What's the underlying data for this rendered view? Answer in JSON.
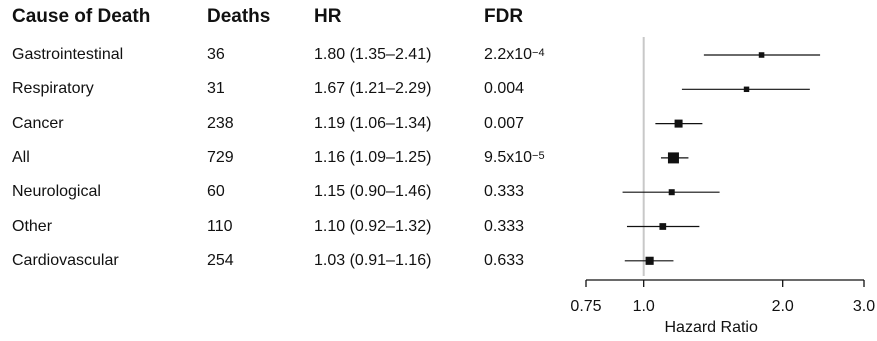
{
  "table": {
    "headers": [
      "Cause of Death",
      "Deaths",
      "HR",
      "FDR"
    ],
    "rows": [
      {
        "cause": "Gastrointestinal",
        "deaths": "36",
        "hr_ci": "1.80 (1.35–2.41)",
        "fdr": "2.2x10",
        "fdr_exp": "−4"
      },
      {
        "cause": "Respiratory",
        "deaths": "31",
        "hr_ci": "1.67 (1.21–2.29)",
        "fdr": "0.004",
        "fdr_exp": ""
      },
      {
        "cause": "Cancer",
        "deaths": "238",
        "hr_ci": "1.19 (1.06–1.34)",
        "fdr": "0.007",
        "fdr_exp": ""
      },
      {
        "cause": "All",
        "deaths": "729",
        "hr_ci": "1.16 (1.09–1.25)",
        "fdr": "9.5x10",
        "fdr_exp": "−5"
      },
      {
        "cause": "Neurological",
        "deaths": "60",
        "hr_ci": "1.15 (0.90–1.46)",
        "fdr": "0.333",
        "fdr_exp": ""
      },
      {
        "cause": "Other",
        "deaths": "110",
        "hr_ci": "1.10 (0.92–1.32)",
        "fdr": "0.333",
        "fdr_exp": ""
      },
      {
        "cause": "Cardiovascular",
        "deaths": "254",
        "hr_ci": "1.03 (0.91–1.16)",
        "fdr": "0.633",
        "fdr_exp": ""
      }
    ]
  },
  "chart_data": {
    "type": "scatter",
    "categories": [
      "Gastrointestinal",
      "Respiratory",
      "Cancer",
      "All",
      "Neurological",
      "Other",
      "Cardiovascular"
    ],
    "hr": [
      1.8,
      1.67,
      1.19,
      1.16,
      1.15,
      1.1,
      1.03
    ],
    "ci_low": [
      1.35,
      1.21,
      1.06,
      1.09,
      0.9,
      0.92,
      0.91
    ],
    "ci_high": [
      2.41,
      2.29,
      1.34,
      1.25,
      1.46,
      1.32,
      1.16
    ],
    "deaths": [
      36,
      31,
      238,
      729,
      60,
      110,
      254
    ],
    "xlabel": "Hazard Ratio",
    "xscale": "log",
    "xlim": [
      0.75,
      3.0
    ],
    "xticks": [
      0.75,
      1.0,
      2.0,
      3.0
    ],
    "xtick_labels": [
      "0.75",
      "1.0",
      "2.0",
      "3.0"
    ],
    "reference_line": 1.0,
    "reference_color": "#c8c8c8",
    "marker_color": "#111111"
  }
}
